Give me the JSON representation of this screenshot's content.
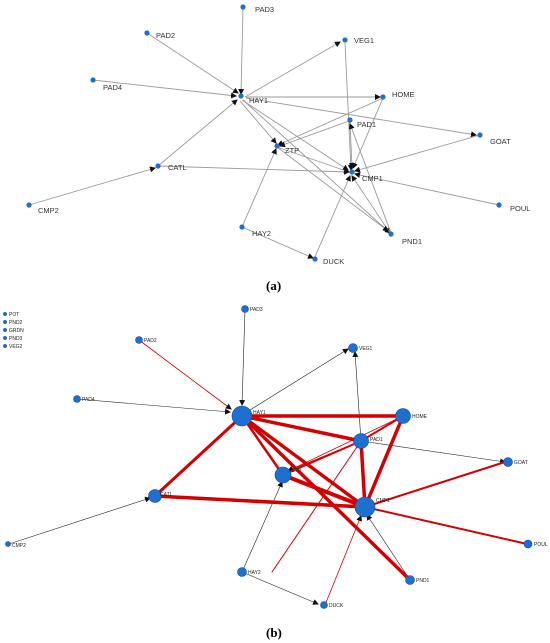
{
  "panel_a": {
    "caption": "(a)",
    "nodes": {
      "PAD3": "PAD3",
      "PAD2": "PAD2",
      "VEG1": "VEG1",
      "PAD4": "PAD4",
      "HAY1": "HAY1",
      "HOME": "HOME",
      "PAD1": "PAD1",
      "GOAT": "GOAT",
      "ZTP": "ZTP",
      "CATL": "CATL",
      "CMP1": "CMP1",
      "CMP2": "CMP2",
      "POUL": "POUL",
      "HAY2": "HAY2",
      "PND1": "PND1",
      "DUCK": "DUCK"
    }
  },
  "panel_b": {
    "caption": "(b)",
    "isolated_nodes": [
      "POT",
      "PND2",
      "GRDN",
      "PND3",
      "VEG2"
    ],
    "nodes": {
      "PAD3": "PAD3",
      "PAD2": "PAD2",
      "VEG1": "VEG1",
      "PAD4": "PAD4",
      "HAY1": "HAY1",
      "HOME": "HOME",
      "PAD1": "PAD1",
      "GOAT": "GOAT",
      "ZTP": "ZTP",
      "CATL": "CATL",
      "CMP1": "CMP1",
      "CMP2": "CMP2",
      "POUL": "POUL",
      "HAY2": "HAY2",
      "PND1": "PND1",
      "DUCK": "DUCK"
    }
  },
  "colors": {
    "node": "#1f6fd1",
    "edge_gray": "#999999",
    "edge_black": "#222222",
    "edge_red": "#d40000"
  }
}
